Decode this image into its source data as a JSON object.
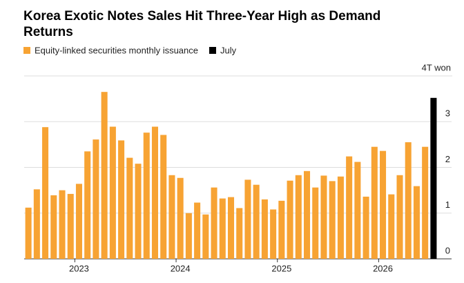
{
  "chart_data": {
    "type": "bar",
    "title": [
      "Korea Exotic Notes Sales Hit Three-Year High as Demand",
      "Returns"
    ],
    "categories": [
      null,
      null,
      null,
      null,
      null,
      null,
      "2023",
      null,
      null,
      null,
      null,
      null,
      null,
      null,
      null,
      null,
      null,
      null,
      "2024",
      null,
      null,
      null,
      null,
      null,
      null,
      null,
      null,
      null,
      null,
      null,
      "2025",
      null,
      null,
      null,
      null,
      null,
      null,
      null,
      null,
      null,
      null,
      null,
      "2026",
      null,
      null,
      null,
      null,
      null,
      null
    ],
    "series": [
      {
        "name": "Equity-linked securities monthly issuance",
        "color": "#f7a333",
        "values": [
          1.12,
          1.52,
          2.88,
          1.39,
          1.5,
          1.42,
          1.64,
          2.35,
          2.61,
          3.65,
          2.89,
          2.59,
          2.21,
          2.08,
          2.76,
          2.89,
          2.71,
          1.83,
          1.77,
          1.0,
          1.23,
          0.97,
          1.56,
          1.32,
          1.35,
          1.11,
          1.73,
          1.62,
          1.3,
          1.08,
          1.27,
          1.71,
          1.83,
          1.92,
          1.56,
          1.82,
          1.7,
          1.8,
          2.24,
          2.12,
          1.36,
          2.45,
          2.36,
          1.41,
          1.83,
          2.55,
          1.59,
          2.45,
          null
        ]
      },
      {
        "name": "July",
        "color": "#000000",
        "values": [
          null,
          null,
          null,
          null,
          null,
          null,
          null,
          null,
          null,
          null,
          null,
          null,
          null,
          null,
          null,
          null,
          null,
          null,
          null,
          null,
          null,
          null,
          null,
          null,
          null,
          null,
          null,
          null,
          null,
          null,
          null,
          null,
          null,
          null,
          null,
          null,
          null,
          null,
          null,
          null,
          null,
          null,
          null,
          null,
          null,
          null,
          null,
          null,
          3.52
        ]
      }
    ],
    "ylim": [
      0,
      4
    ],
    "yticks": [
      0,
      1,
      2,
      3,
      {
        "value": 4,
        "label": "4T won"
      }
    ],
    "grid": true
  }
}
